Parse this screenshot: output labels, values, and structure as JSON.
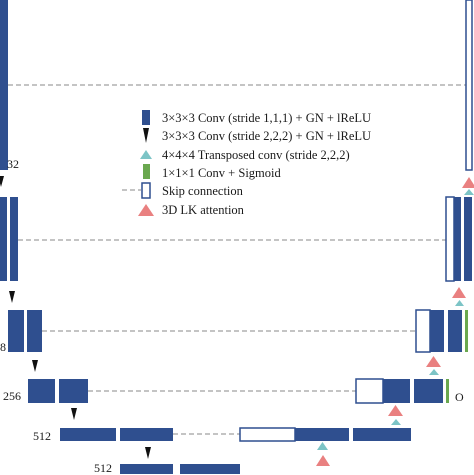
{
  "colors": {
    "conv_fill": "#2f4f8f",
    "skip_fill": "#ffffff",
    "skip_stroke": "#2f4f8f",
    "dash": "#8a8a8a",
    "transposed": "#7cc4c6",
    "sigmoid": "#6aa84f",
    "attention": "#e98080",
    "down_arrow": "#111111"
  },
  "legend": {
    "conv": "3×3×3 Conv (stride 1,1,1) + GN + lReLU",
    "conv_down": "3×3×3 Conv (stride 2,2,2) + GN + lReLU",
    "transposed": "4×4×4 Transposed conv (stride 2,2,2)",
    "sigmoid": "1×1×1 Conv + Sigmoid",
    "skip": "Skip connection",
    "attention": "3D LK attention"
  },
  "channel_labels": {
    "l1": "32",
    "l2": "8",
    "l3": "256",
    "l4": "512",
    "l5": "512",
    "out": "O"
  },
  "icon_names": {
    "conv": "blue-block-icon",
    "conv_down": "black-down-arrow-icon",
    "transposed": "teal-triangle-icon",
    "sigmoid": "green-bar-icon",
    "skip": "dashed-skip-icon",
    "attention": "pink-triangle-icon"
  }
}
